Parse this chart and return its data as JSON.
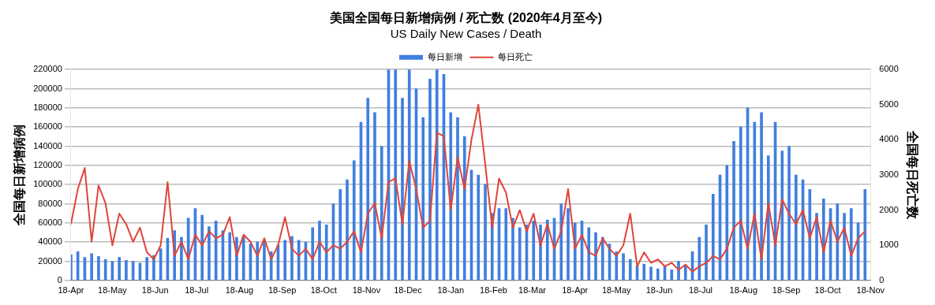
{
  "chart_data": {
    "type": "bar",
    "title": "美国全国每日新增病例 / 死亡数 (2020年4月至今)",
    "subtitle": "US Daily New Cases / Death",
    "ylabel": "全国每日新增病例",
    "y2label": "全国每日死亡数",
    "x": [
      "2020-04-18",
      "2020-04-23",
      "2020-04-28",
      "2020-05-03",
      "2020-05-08",
      "2020-05-13",
      "2020-05-18",
      "2020-05-23",
      "2020-05-28",
      "2020-06-02",
      "2020-06-07",
      "2020-06-12",
      "2020-06-17",
      "2020-06-22",
      "2020-06-27",
      "2020-07-02",
      "2020-07-07",
      "2020-07-12",
      "2020-07-17",
      "2020-07-22",
      "2020-07-27",
      "2020-08-01",
      "2020-08-06",
      "2020-08-11",
      "2020-08-16",
      "2020-08-21",
      "2020-08-26",
      "2020-08-31",
      "2020-09-05",
      "2020-09-10",
      "2020-09-15",
      "2020-09-20",
      "2020-09-25",
      "2020-09-30",
      "2020-10-05",
      "2020-10-10",
      "2020-10-15",
      "2020-10-20",
      "2020-10-25",
      "2020-10-30",
      "2020-11-04",
      "2020-11-09",
      "2020-11-14",
      "2020-11-19",
      "2020-11-24",
      "2020-11-29",
      "2020-12-04",
      "2020-12-09",
      "2020-12-14",
      "2020-12-19",
      "2020-12-24",
      "2020-12-29",
      "2021-01-03",
      "2021-01-08",
      "2021-01-13",
      "2021-01-18",
      "2021-01-23",
      "2021-01-28",
      "2021-02-02",
      "2021-02-07",
      "2021-02-12",
      "2021-02-17",
      "2021-02-22",
      "2021-02-27",
      "2021-03-04",
      "2021-03-09",
      "2021-03-14",
      "2021-03-19",
      "2021-03-24",
      "2021-03-29",
      "2021-04-03",
      "2021-04-08",
      "2021-04-13",
      "2021-04-18",
      "2021-04-23",
      "2021-04-28",
      "2021-05-03",
      "2021-05-08",
      "2021-05-13",
      "2021-05-18",
      "2021-05-23",
      "2021-05-28",
      "2021-06-02",
      "2021-06-07",
      "2021-06-12",
      "2021-06-17",
      "2021-06-22",
      "2021-06-27",
      "2021-07-02",
      "2021-07-07",
      "2021-07-12",
      "2021-07-17",
      "2021-07-22",
      "2021-07-27",
      "2021-08-01",
      "2021-08-06",
      "2021-08-11",
      "2021-08-16",
      "2021-08-21",
      "2021-08-26",
      "2021-08-31",
      "2021-09-05",
      "2021-09-10",
      "2021-09-15",
      "2021-09-20",
      "2021-09-25",
      "2021-09-30",
      "2021-10-05",
      "2021-10-10",
      "2021-10-15",
      "2021-10-20",
      "2021-10-25",
      "2021-10-30",
      "2021-11-04",
      "2021-11-09",
      "2021-11-14"
    ],
    "series": [
      {
        "name": "每日新增",
        "color": "#3f7fe0",
        "values": [
          27000,
          30000,
          24000,
          28000,
          25000,
          22000,
          20000,
          24000,
          21000,
          20000,
          18000,
          24000,
          26000,
          33000,
          44000,
          52000,
          45000,
          65000,
          75000,
          68000,
          56000,
          62000,
          52000,
          50000,
          45000,
          46000,
          38000,
          40000,
          42000,
          30000,
          37000,
          42000,
          46000,
          42000,
          40000,
          55000,
          62000,
          58000,
          80000,
          95000,
          105000,
          125000,
          165000,
          190000,
          175000,
          140000,
          220000,
          220000,
          190000,
          220000,
          200000,
          170000,
          210000,
          220000,
          215000,
          175000,
          170000,
          150000,
          115000,
          110000,
          100000,
          70000,
          75000,
          75000,
          65000,
          55000,
          58000,
          62000,
          58000,
          63000,
          65000,
          80000,
          75000,
          60000,
          62000,
          55000,
          50000,
          45000,
          38000,
          30000,
          28000,
          22000,
          15000,
          17000,
          14000,
          12000,
          15000,
          11000,
          20000,
          16000,
          30000,
          45000,
          58000,
          90000,
          110000,
          120000,
          145000,
          160000,
          180000,
          165000,
          175000,
          130000,
          165000,
          135000,
          140000,
          110000,
          105000,
          95000,
          70000,
          85000,
          75000,
          80000,
          70000,
          75000,
          60000,
          95000
        ]
      },
      {
        "name": "每日死亡",
        "type": "line",
        "axis": "y2",
        "color": "#e0443a",
        "values": [
          1600,
          2600,
          3200,
          1100,
          2700,
          2200,
          1000,
          1900,
          1600,
          1100,
          1500,
          800,
          600,
          1000,
          2800,
          700,
          1100,
          600,
          1300,
          1000,
          1400,
          1200,
          1300,
          1800,
          700,
          1300,
          1100,
          700,
          1200,
          600,
          1000,
          1800,
          900,
          700,
          900,
          600,
          1100,
          800,
          1000,
          900,
          1100,
          1400,
          800,
          1900,
          2200,
          1200,
          2800,
          2900,
          1600,
          3400,
          2600,
          1500,
          1700,
          4200,
          4100,
          2000,
          3500,
          2600,
          4000,
          5000,
          3300,
          1500,
          2900,
          2500,
          1500,
          2000,
          1400,
          1900,
          1000,
          1600,
          900,
          1400,
          2600,
          900,
          1300,
          800,
          700,
          1200,
          900,
          700,
          1000,
          1900,
          400,
          800,
          500,
          600,
          400,
          500,
          300,
          450,
          250,
          400,
          500,
          700,
          600,
          900,
          1500,
          1700,
          900,
          1900,
          600,
          2200,
          1000,
          2300,
          1900,
          1600,
          2000,
          1200,
          1800,
          800,
          1700,
          1100,
          1500,
          700,
          1200,
          1400
        ]
      }
    ],
    "xlim": [
      "2020-04-18",
      "2021-11-18"
    ],
    "xticks": [
      {
        "value": "2020-04-18",
        "label": "18-Apr"
      },
      {
        "value": "2020-05-18",
        "label": "18-May"
      },
      {
        "value": "2020-06-18",
        "label": "18-Jun"
      },
      {
        "value": "2020-07-18",
        "label": "18-Jul"
      },
      {
        "value": "2020-08-18",
        "label": "18-Aug"
      },
      {
        "value": "2020-09-18",
        "label": "18-Sep"
      },
      {
        "value": "2020-10-18",
        "label": "18-Oct"
      },
      {
        "value": "2020-11-18",
        "label": "18-Nov"
      },
      {
        "value": "2020-12-18",
        "label": "18-Dec"
      },
      {
        "value": "2021-01-18",
        "label": "18-Jan"
      },
      {
        "value": "2021-02-18",
        "label": "18-Feb"
      },
      {
        "value": "2021-03-18",
        "label": "18-Mar"
      },
      {
        "value": "2021-04-18",
        "label": "18-Apr"
      },
      {
        "value": "2021-05-18",
        "label": "18-May"
      },
      {
        "value": "2021-06-18",
        "label": "18-Jun"
      },
      {
        "value": "2021-07-18",
        "label": "18-Jul"
      },
      {
        "value": "2021-08-18",
        "label": "18-Aug"
      },
      {
        "value": "2021-09-18",
        "label": "18-Sep"
      },
      {
        "value": "2021-10-18",
        "label": "18-Oct"
      },
      {
        "value": "2021-11-18",
        "label": "18-Nov"
      }
    ],
    "ylim": [
      0,
      220000
    ],
    "yticks": [
      0,
      20000,
      40000,
      60000,
      80000,
      100000,
      120000,
      140000,
      160000,
      180000,
      200000,
      220000
    ],
    "y2lim": [
      0,
      6000
    ],
    "y2ticks": [
      0,
      1000,
      2000,
      3000,
      4000,
      5000,
      6000
    ],
    "grid": "y",
    "legend": "top",
    "marker": "none",
    "line_style": "solid"
  }
}
